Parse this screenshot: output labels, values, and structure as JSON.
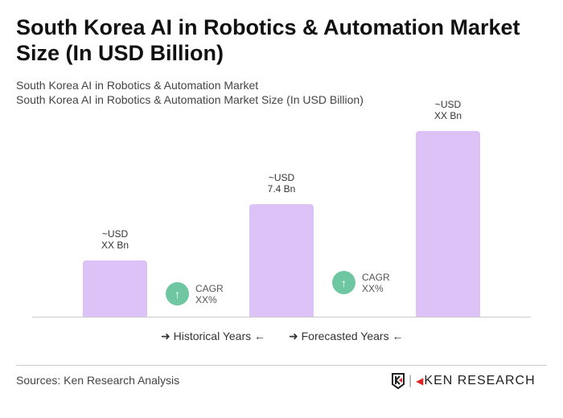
{
  "title": "South Korea AI in Robotics & Automation Market Size (In USD Billion)",
  "subtitle1": "South Korea AI in Robotics & Automation Market",
  "subtitle2": "South Korea AI in Robotics & Automation Market Size (In USD Billion)",
  "chart_data": {
    "type": "bar",
    "categories": [
      "",
      "",
      ""
    ],
    "values": [
      3.7,
      7.4,
      12.2
    ],
    "data_labels": [
      [
        "~USD",
        "XX Bn"
      ],
      [
        "~USD",
        "7.4 Bn"
      ],
      [
        "~USD",
        "XX Bn"
      ]
    ],
    "bar_color": "#dcc2f7",
    "grid": false
  },
  "cagr": [
    {
      "label": "CAGR",
      "value": "XX%",
      "icon": "arrow-up-icon"
    },
    {
      "label": "CAGR",
      "value": "XX%",
      "icon": "arrow-up-icon"
    }
  ],
  "legend": {
    "historical": "Historical Years",
    "forecasted": "Forecasted Years"
  },
  "source": "Sources: Ken Research Analysis",
  "logo": "KEN RESEARCH",
  "colors": {
    "cagr": "#6fc7a2",
    "bar": "#dcc2f7"
  }
}
